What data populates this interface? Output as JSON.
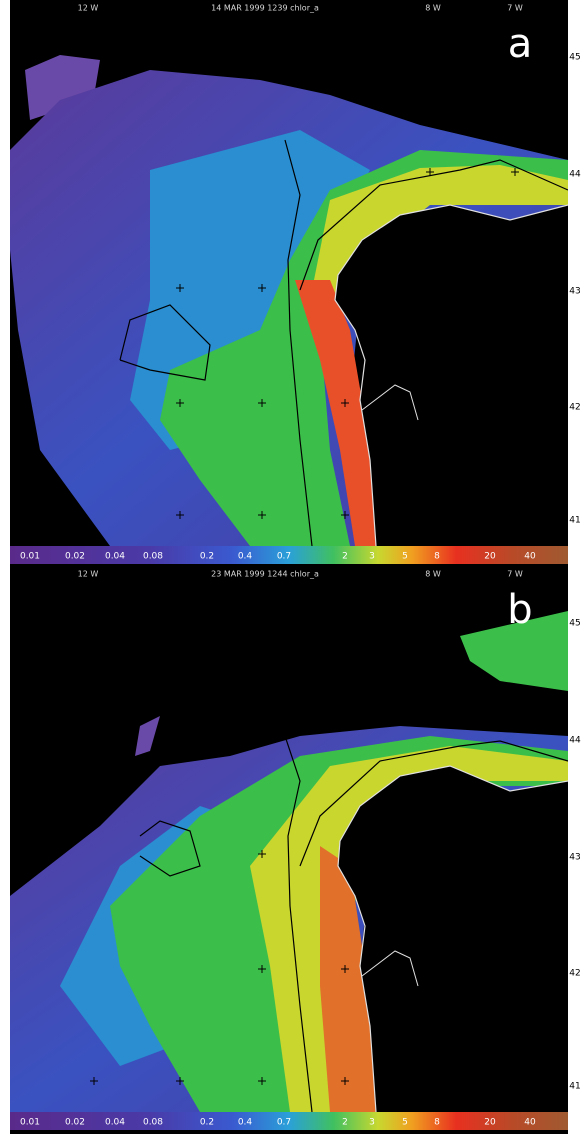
{
  "panels": [
    {
      "header": {
        "lon_left": "12 W",
        "title": "14 MAR 1999 1239 chlor_a",
        "lon_mid": "8 W",
        "lon_right": "7 W"
      },
      "letter": "a",
      "lat_labels": [
        "45",
        "44",
        "43",
        "42",
        "41"
      ],
      "colorbar_labels": [
        "0.01",
        "0.02",
        "0.04",
        "0.08",
        "0.2",
        "0.4",
        "0.7",
        "2",
        "3",
        "5",
        "8",
        "20",
        "40"
      ]
    },
    {
      "header": {
        "lon_left": "12 W",
        "title": "23 MAR 1999 1244 chlor_a",
        "lon_mid": "8 W",
        "lon_right": "7 W"
      },
      "letter": "b",
      "lat_labels": [
        "45",
        "44",
        "43",
        "42",
        "41"
      ],
      "colorbar_labels": [
        "0.01",
        "0.02",
        "0.04",
        "0.08",
        "0.2",
        "0.4",
        "0.7",
        "2",
        "3",
        "5",
        "8",
        "20",
        "40"
      ]
    }
  ]
}
